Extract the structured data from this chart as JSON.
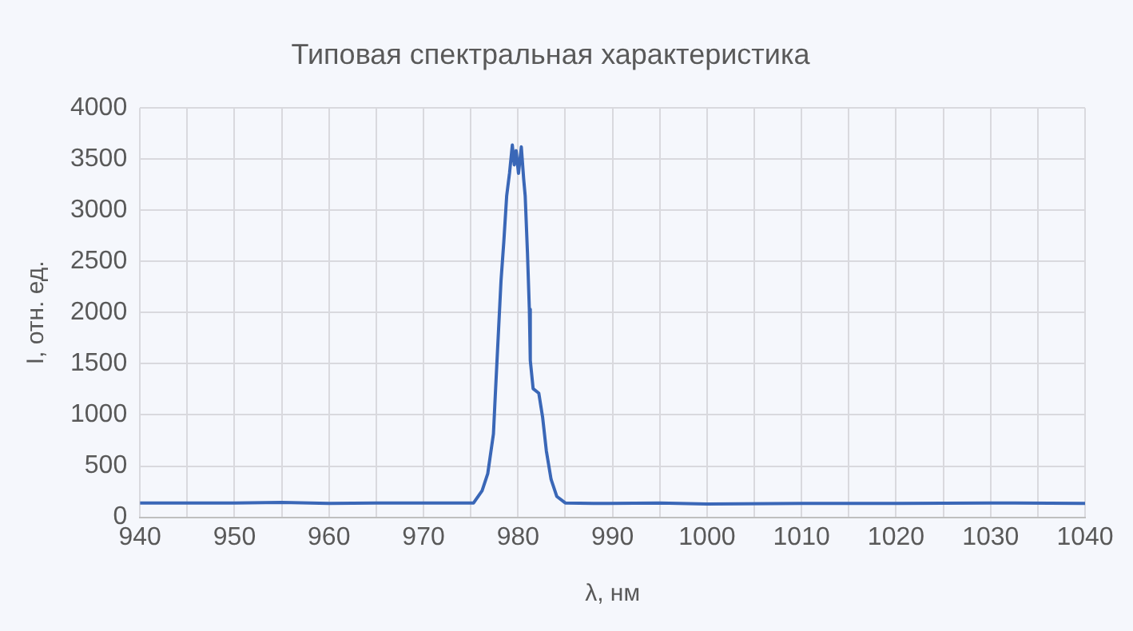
{
  "chart_data": {
    "type": "line",
    "title": "Типовая спектральная характеристика",
    "xlabel": "λ, нм",
    "ylabel": "I, отн. ед.",
    "x": [
      940,
      945,
      950,
      955,
      960,
      965,
      970,
      973,
      975.3,
      976.2,
      976.8,
      977.4,
      977.6,
      977.9,
      978.2,
      978.5,
      978.8,
      979.1,
      979.4,
      979.6,
      979.8,
      980.05,
      980.35,
      980.6,
      980.76,
      981,
      981.2,
      981.3,
      981.6,
      982.2,
      982.6,
      983,
      983.5,
      984.1,
      985,
      988,
      995,
      1000,
      1010,
      1020,
      1030,
      1040
    ],
    "series": [
      {
        "color": "#3a67b7",
        "values": [
          140,
          140,
          140,
          145,
          135,
          140,
          140,
          140,
          140,
          260,
          427,
          814,
          1200,
          1755,
          2309,
          2696,
          3140,
          3361,
          3638,
          3444,
          3583,
          3361,
          3620,
          3305,
          3140,
          2586,
          2032,
          1533,
          1257,
          1213,
          980,
          648,
          370,
          204,
          140,
          135,
          140,
          130,
          135,
          135,
          140,
          135
        ]
      }
    ],
    "xlim": [
      940,
      1040
    ],
    "xticks": [
      940,
      {
        "value": 945,
        "label": null
      },
      950,
      {
        "value": 955,
        "label": null
      },
      960,
      {
        "value": 965,
        "label": null
      },
      970,
      {
        "value": 975,
        "label": null
      },
      980,
      {
        "value": 985,
        "label": null
      },
      990,
      {
        "value": 995,
        "label": null
      },
      1000,
      {
        "value": 1005,
        "label": null
      },
      1010,
      {
        "value": 1015,
        "label": null
      },
      1020,
      {
        "value": 1025,
        "label": null
      },
      1030,
      {
        "value": 1035,
        "label": null
      },
      1040
    ],
    "ylim": [
      0,
      4000
    ],
    "yticks": [
      0,
      500,
      1000,
      1500,
      2000,
      2500,
      3000,
      3500,
      4000
    ],
    "grid": true,
    "legend": false,
    "marker": "none",
    "line_style": "solid"
  }
}
